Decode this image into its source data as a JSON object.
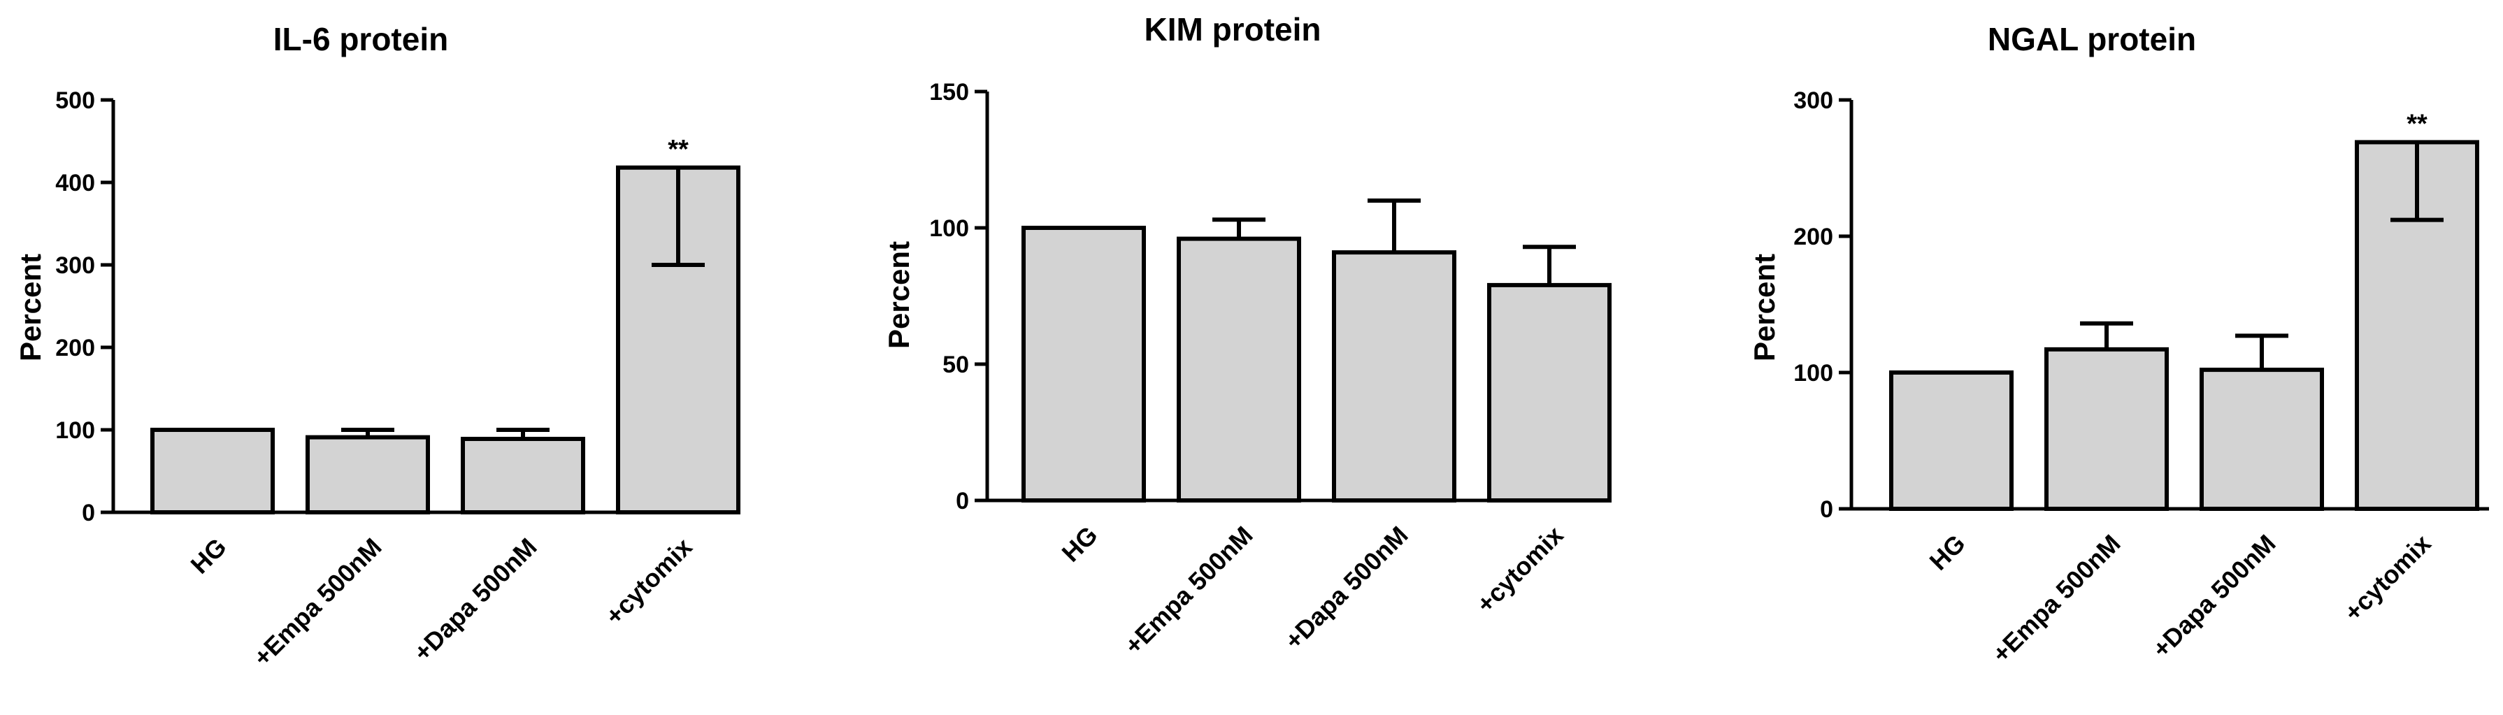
{
  "chart_data": [
    {
      "type": "bar",
      "title": "IL-6 protein",
      "xlabel": "",
      "ylabel": "Percent",
      "ylim": [
        0,
        500
      ],
      "yticks": [
        0,
        100,
        200,
        300,
        400,
        500
      ],
      "categories": [
        "HG",
        "+Empa 500nM",
        "+Dapa 500nM",
        "+cytomix"
      ],
      "values": [
        100,
        91,
        89,
        418
      ],
      "errors": [
        0,
        9,
        11,
        118
      ],
      "error_direction": [
        "up",
        "up",
        "up",
        "down"
      ],
      "annotations": [
        "",
        "",
        "",
        "**"
      ],
      "grid": false,
      "colors": {
        "bar_fill": "#d3d3d3",
        "bar_stroke": "#000000"
      }
    },
    {
      "type": "bar",
      "title": "KIM protein",
      "xlabel": "",
      "ylabel": "Percent",
      "ylim": [
        0,
        150
      ],
      "yticks": [
        0,
        50,
        100,
        150
      ],
      "categories": [
        "HG",
        "+Empa 500nM",
        "+Dapa 500nM",
        "+cytomix"
      ],
      "values": [
        100,
        96,
        91,
        79
      ],
      "errors": [
        0,
        7,
        19,
        14
      ],
      "error_direction": [
        "up",
        "up",
        "up",
        "up"
      ],
      "annotations": [
        "",
        "",
        "",
        ""
      ],
      "grid": false,
      "colors": {
        "bar_fill": "#d3d3d3",
        "bar_stroke": "#000000"
      }
    },
    {
      "type": "bar",
      "title": "NGAL protein",
      "xlabel": "",
      "ylabel": "Percent",
      "ylim": [
        0,
        300
      ],
      "yticks": [
        0,
        100,
        200,
        300
      ],
      "categories": [
        "HG",
        "+Empa 500nM",
        "+Dapa 500nM",
        "+cytomix"
      ],
      "values": [
        100,
        117,
        102,
        269
      ],
      "errors": [
        0,
        19,
        25,
        57
      ],
      "error_direction": [
        "up",
        "up",
        "up",
        "down"
      ],
      "annotations": [
        "",
        "",
        "",
        "**"
      ],
      "grid": false,
      "colors": {
        "bar_fill": "#d3d3d3",
        "bar_stroke": "#000000"
      }
    }
  ]
}
